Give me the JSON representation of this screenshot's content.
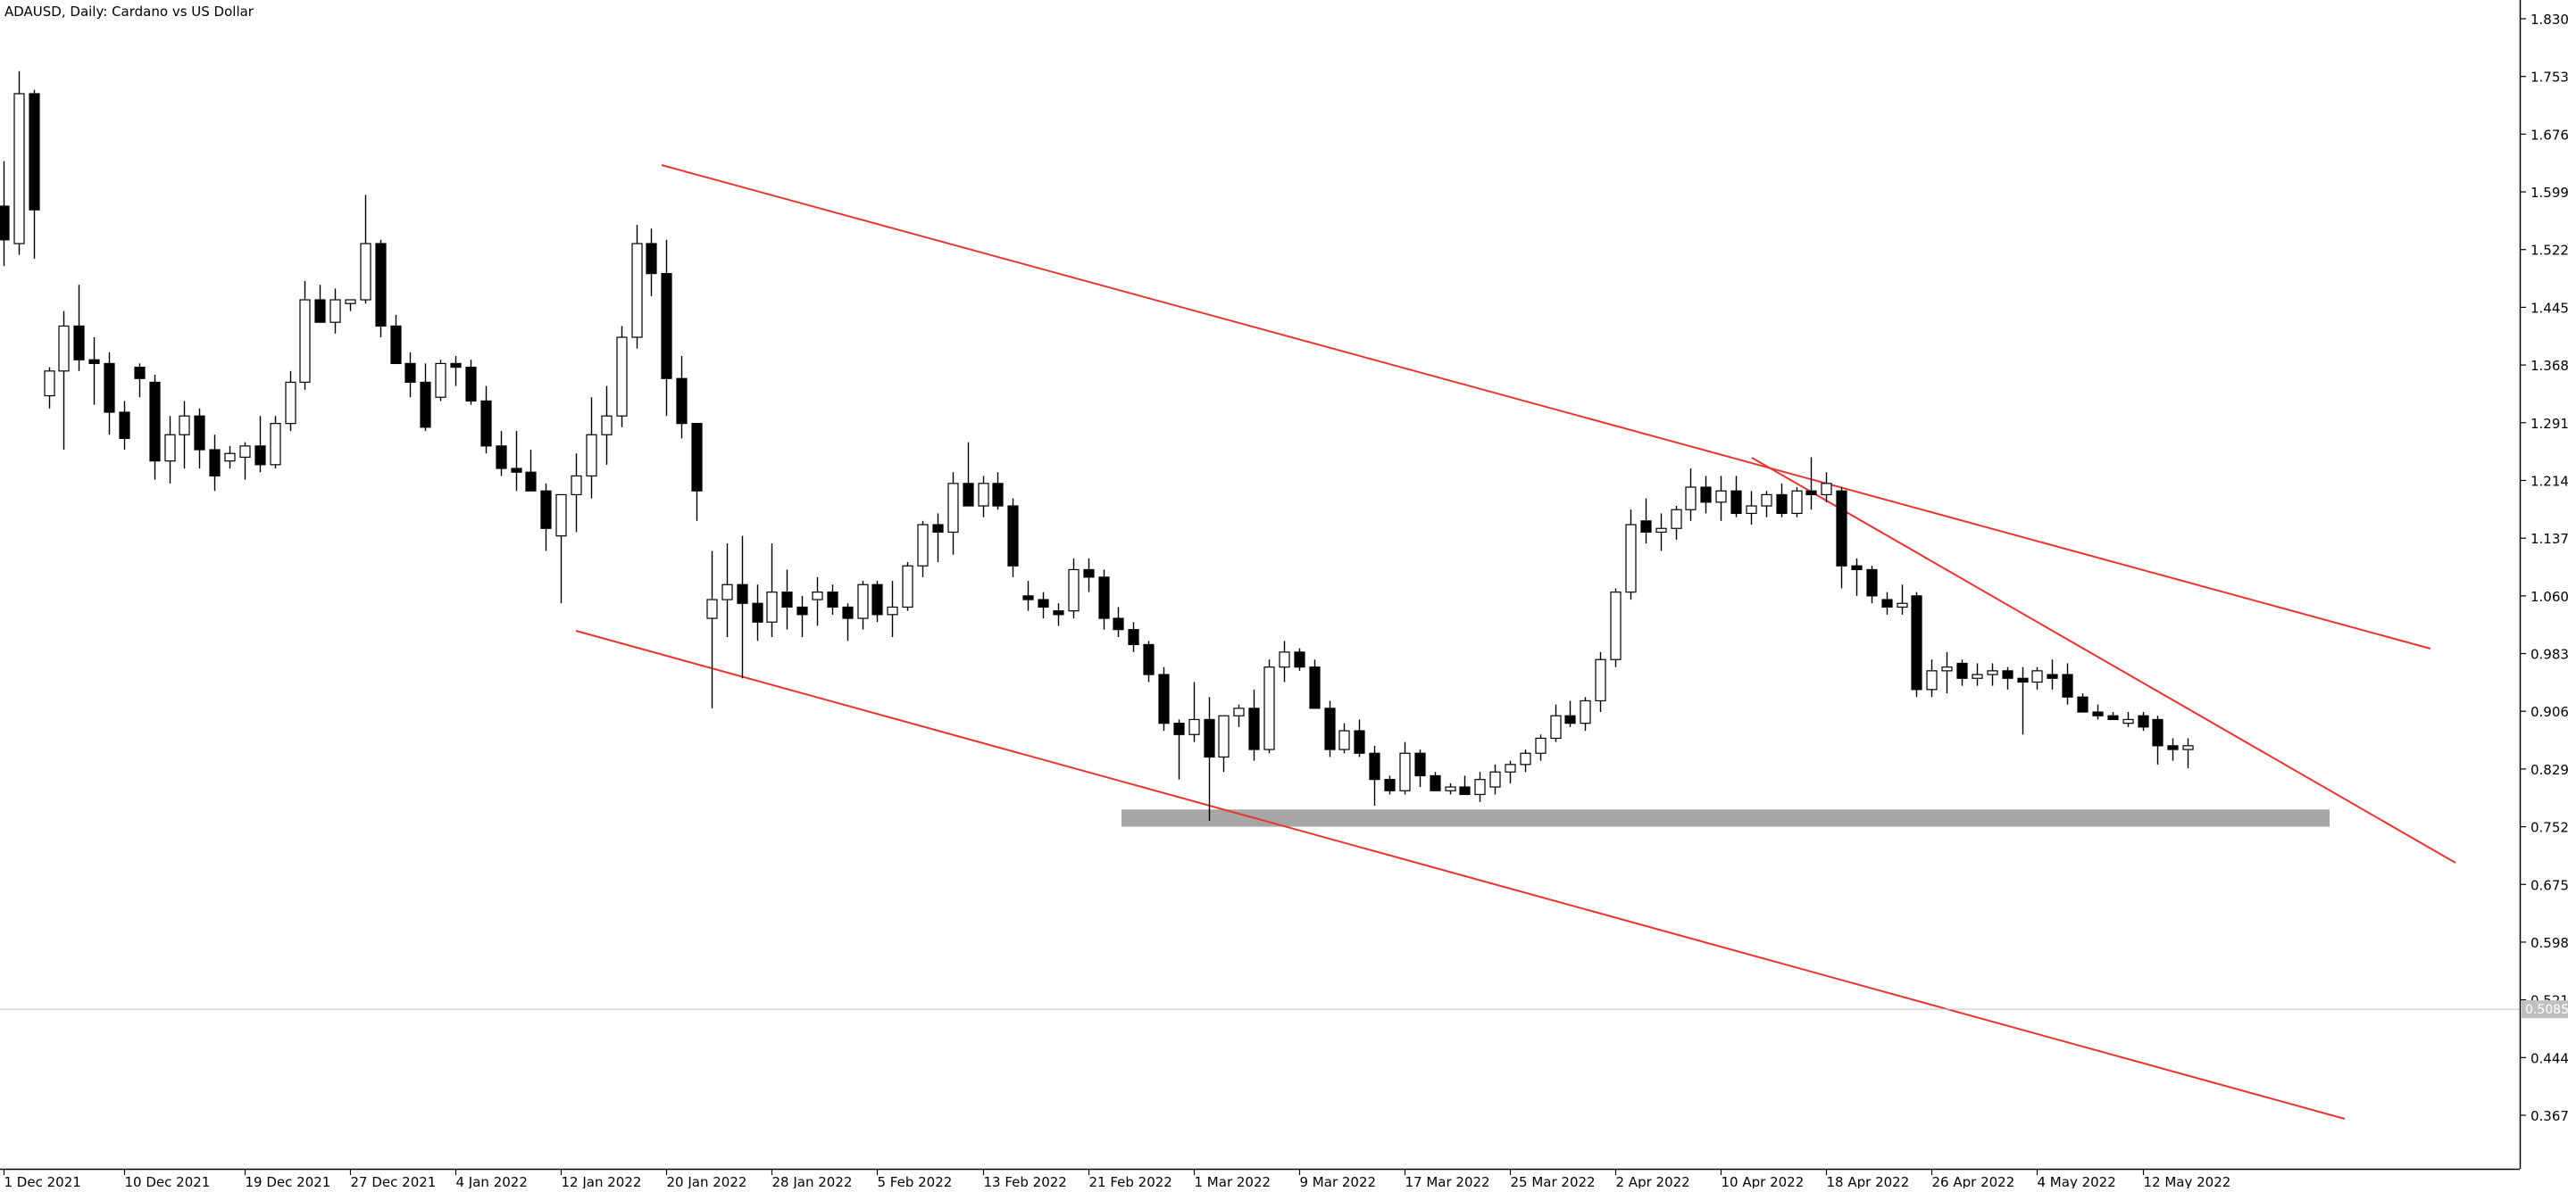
{
  "window": {
    "title": "ADAUSD, Daily:  Cardano vs US Dollar"
  },
  "colors": {
    "background": "#ffffff",
    "axis": "#000000",
    "bull_fill": "#ffffff",
    "bear_fill": "#000000",
    "trendline": "#e8352f",
    "support_zone": "#a6a6a6",
    "price_line": "#c0c0c0"
  },
  "chart_data": {
    "type": "candlestick",
    "symbol": "ADAUSD",
    "timeframe": "Daily",
    "title": "ADAUSD, Daily:  Cardano vs US Dollar",
    "y_axis": {
      "position": "right",
      "ticks": [
        1.83,
        1.753,
        1.676,
        1.599,
        1.522,
        1.445,
        1.368,
        1.291,
        1.214,
        1.137,
        1.06,
        0.983,
        0.906,
        0.829,
        0.752,
        0.675,
        0.598,
        0.521,
        0.444,
        0.367
      ],
      "tick_labels": [
        "1.8300",
        "1.7530",
        "1.6760",
        "1.5990",
        "1.5220",
        "1.4450",
        "1.3680",
        "1.2910",
        "1.2140",
        "1.1370",
        "1.0600",
        "0.9830",
        "0.9060",
        "0.8290",
        "0.7520",
        "0.6750",
        "0.5980",
        "0.5210",
        "0.4440",
        "0.3670"
      ],
      "ylim": [
        0.335,
        1.845
      ]
    },
    "x_axis": {
      "labels": [
        "1 Dec 2021",
        "10 Dec 2021",
        "19 Dec 2021",
        "27 Dec 2021",
        "4 Jan 2022",
        "12 Jan 2022",
        "20 Jan 2022",
        "28 Jan 2022",
        "5 Feb 2022",
        "13 Feb 2022",
        "21 Feb 2022",
        "1 Mar 2022",
        "9 Mar 2022",
        "17 Mar 2022",
        "25 Mar 2022",
        "2 Apr 2022",
        "10 Apr 2022",
        "18 Apr 2022",
        "26 Apr 2022",
        "4 May 2022",
        "12 May 2022"
      ],
      "label_bar_index": [
        0,
        8,
        16,
        23,
        30,
        37,
        44,
        51,
        58,
        65,
        72,
        79,
        86,
        93,
        100,
        107,
        114,
        121,
        128,
        135,
        142
      ]
    },
    "current_price": 0.5085,
    "current_price_label": "0.5085",
    "candles": [
      {
        "o": 1.58,
        "h": 1.64,
        "l": 1.5,
        "c": 1.535
      },
      {
        "o": 1.53,
        "h": 1.76,
        "l": 1.515,
        "c": 1.73
      },
      {
        "o": 1.73,
        "h": 1.735,
        "l": 1.51,
        "c": 1.575
      },
      {
        "o": 1.327,
        "h": 1.365,
        "l": 1.31,
        "c": 1.36
      },
      {
        "o": 1.36,
        "h": 1.44,
        "l": 1.255,
        "c": 1.42
      },
      {
        "o": 1.42,
        "h": 1.475,
        "l": 1.36,
        "c": 1.375
      },
      {
        "o": 1.375,
        "h": 1.405,
        "l": 1.315,
        "c": 1.37
      },
      {
        "o": 1.37,
        "h": 1.385,
        "l": 1.275,
        "c": 1.305
      },
      {
        "o": 1.305,
        "h": 1.32,
        "l": 1.255,
        "c": 1.27
      },
      {
        "o": 1.365,
        "h": 1.37,
        "l": 1.325,
        "c": 1.35
      },
      {
        "o": 1.345,
        "h": 1.355,
        "l": 1.215,
        "c": 1.24
      },
      {
        "o": 1.24,
        "h": 1.3,
        "l": 1.21,
        "c": 1.275
      },
      {
        "o": 1.275,
        "h": 1.32,
        "l": 1.23,
        "c": 1.3
      },
      {
        "o": 1.3,
        "h": 1.31,
        "l": 1.23,
        "c": 1.255
      },
      {
        "o": 1.255,
        "h": 1.275,
        "l": 1.2,
        "c": 1.22
      },
      {
        "o": 1.24,
        "h": 1.26,
        "l": 1.23,
        "c": 1.25
      },
      {
        "o": 1.245,
        "h": 1.265,
        "l": 1.215,
        "c": 1.26
      },
      {
        "o": 1.26,
        "h": 1.3,
        "l": 1.225,
        "c": 1.235
      },
      {
        "o": 1.235,
        "h": 1.3,
        "l": 1.23,
        "c": 1.29
      },
      {
        "o": 1.29,
        "h": 1.36,
        "l": 1.28,
        "c": 1.345
      },
      {
        "o": 1.345,
        "h": 1.48,
        "l": 1.335,
        "c": 1.455
      },
      {
        "o": 1.455,
        "h": 1.475,
        "l": 1.43,
        "c": 1.425
      },
      {
        "o": 1.425,
        "h": 1.47,
        "l": 1.41,
        "c": 1.455
      },
      {
        "o": 1.45,
        "h": 1.455,
        "l": 1.44,
        "c": 1.455
      },
      {
        "o": 1.455,
        "h": 1.595,
        "l": 1.45,
        "c": 1.53
      },
      {
        "o": 1.53,
        "h": 1.535,
        "l": 1.405,
        "c": 1.42
      },
      {
        "o": 1.42,
        "h": 1.435,
        "l": 1.37,
        "c": 1.37
      },
      {
        "o": 1.37,
        "h": 1.385,
        "l": 1.325,
        "c": 1.345
      },
      {
        "o": 1.345,
        "h": 1.37,
        "l": 1.28,
        "c": 1.285
      },
      {
        "o": 1.325,
        "h": 1.375,
        "l": 1.32,
        "c": 1.37
      },
      {
        "o": 1.37,
        "h": 1.38,
        "l": 1.34,
        "c": 1.365
      },
      {
        "o": 1.365,
        "h": 1.375,
        "l": 1.315,
        "c": 1.32
      },
      {
        "o": 1.32,
        "h": 1.34,
        "l": 1.25,
        "c": 1.26
      },
      {
        "o": 1.26,
        "h": 1.28,
        "l": 1.22,
        "c": 1.23
      },
      {
        "o": 1.23,
        "h": 1.28,
        "l": 1.2,
        "c": 1.225
      },
      {
        "o": 1.225,
        "h": 1.255,
        "l": 1.2,
        "c": 1.2
      },
      {
        "o": 1.2,
        "h": 1.21,
        "l": 1.12,
        "c": 1.15
      },
      {
        "o": 1.14,
        "h": 1.185,
        "l": 1.05,
        "c": 1.195
      },
      {
        "o": 1.195,
        "h": 1.25,
        "l": 1.145,
        "c": 1.22
      },
      {
        "o": 1.22,
        "h": 1.325,
        "l": 1.19,
        "c": 1.275
      },
      {
        "o": 1.275,
        "h": 1.34,
        "l": 1.235,
        "c": 1.3
      },
      {
        "o": 1.3,
        "h": 1.42,
        "l": 1.285,
        "c": 1.405
      },
      {
        "o": 1.405,
        "h": 1.555,
        "l": 1.39,
        "c": 1.53
      },
      {
        "o": 1.53,
        "h": 1.55,
        "l": 1.46,
        "c": 1.49
      },
      {
        "o": 1.49,
        "h": 1.535,
        "l": 1.3,
        "c": 1.35
      },
      {
        "o": 1.35,
        "h": 1.38,
        "l": 1.27,
        "c": 1.29
      },
      {
        "o": 1.29,
        "h": 1.29,
        "l": 1.16,
        "c": 1.2
      },
      {
        "o": 1.03,
        "h": 1.12,
        "l": 0.91,
        "c": 1.055
      },
      {
        "o": 1.055,
        "h": 1.13,
        "l": 1.005,
        "c": 1.075
      },
      {
        "o": 1.075,
        "h": 1.14,
        "l": 0.95,
        "c": 1.05
      },
      {
        "o": 1.05,
        "h": 1.075,
        "l": 1.0,
        "c": 1.025
      },
      {
        "o": 1.025,
        "h": 1.13,
        "l": 1.005,
        "c": 1.065
      },
      {
        "o": 1.065,
        "h": 1.095,
        "l": 1.015,
        "c": 1.045
      },
      {
        "o": 1.045,
        "h": 1.06,
        "l": 1.005,
        "c": 1.035
      },
      {
        "o": 1.055,
        "h": 1.085,
        "l": 1.02,
        "c": 1.065
      },
      {
        "o": 1.065,
        "h": 1.075,
        "l": 1.035,
        "c": 1.045
      },
      {
        "o": 1.045,
        "h": 1.05,
        "l": 1.0,
        "c": 1.03
      },
      {
        "o": 1.03,
        "h": 1.08,
        "l": 1.015,
        "c": 1.075
      },
      {
        "o": 1.075,
        "h": 1.08,
        "l": 1.025,
        "c": 1.035
      },
      {
        "o": 1.035,
        "h": 1.08,
        "l": 1.005,
        "c": 1.045
      },
      {
        "o": 1.045,
        "h": 1.105,
        "l": 1.04,
        "c": 1.1
      },
      {
        "o": 1.1,
        "h": 1.16,
        "l": 1.085,
        "c": 1.155
      },
      {
        "o": 1.155,
        "h": 1.17,
        "l": 1.105,
        "c": 1.145
      },
      {
        "o": 1.145,
        "h": 1.225,
        "l": 1.115,
        "c": 1.21
      },
      {
        "o": 1.21,
        "h": 1.265,
        "l": 1.19,
        "c": 1.18
      },
      {
        "o": 1.18,
        "h": 1.22,
        "l": 1.165,
        "c": 1.21
      },
      {
        "o": 1.21,
        "h": 1.225,
        "l": 1.175,
        "c": 1.18
      },
      {
        "o": 1.18,
        "h": 1.19,
        "l": 1.085,
        "c": 1.1
      },
      {
        "o": 1.06,
        "h": 1.08,
        "l": 1.04,
        "c": 1.055
      },
      {
        "o": 1.055,
        "h": 1.065,
        "l": 1.03,
        "c": 1.045
      },
      {
        "o": 1.04,
        "h": 1.05,
        "l": 1.02,
        "c": 1.035
      },
      {
        "o": 1.04,
        "h": 1.11,
        "l": 1.03,
        "c": 1.095
      },
      {
        "o": 1.095,
        "h": 1.11,
        "l": 1.065,
        "c": 1.085
      },
      {
        "o": 1.085,
        "h": 1.095,
        "l": 1.015,
        "c": 1.03
      },
      {
        "o": 1.03,
        "h": 1.045,
        "l": 1.005,
        "c": 1.015
      },
      {
        "o": 1.015,
        "h": 1.025,
        "l": 0.985,
        "c": 0.995
      },
      {
        "o": 0.995,
        "h": 1.0,
        "l": 0.945,
        "c": 0.955
      },
      {
        "o": 0.955,
        "h": 0.965,
        "l": 0.88,
        "c": 0.89
      },
      {
        "o": 0.89,
        "h": 0.895,
        "l": 0.815,
        "c": 0.875
      },
      {
        "o": 0.875,
        "h": 0.945,
        "l": 0.865,
        "c": 0.895
      },
      {
        "o": 0.895,
        "h": 0.925,
        "l": 0.76,
        "c": 0.845
      },
      {
        "o": 0.845,
        "h": 0.9,
        "l": 0.825,
        "c": 0.9
      },
      {
        "o": 0.9,
        "h": 0.915,
        "l": 0.885,
        "c": 0.91
      },
      {
        "o": 0.91,
        "h": 0.935,
        "l": 0.84,
        "c": 0.855
      },
      {
        "o": 0.855,
        "h": 0.975,
        "l": 0.85,
        "c": 0.965
      },
      {
        "o": 0.965,
        "h": 1.0,
        "l": 0.945,
        "c": 0.985
      },
      {
        "o": 0.985,
        "h": 0.99,
        "l": 0.96,
        "c": 0.965
      },
      {
        "o": 0.965,
        "h": 0.975,
        "l": 0.91,
        "c": 0.91
      },
      {
        "o": 0.91,
        "h": 0.92,
        "l": 0.845,
        "c": 0.855
      },
      {
        "o": 0.855,
        "h": 0.89,
        "l": 0.85,
        "c": 0.88
      },
      {
        "o": 0.88,
        "h": 0.895,
        "l": 0.845,
        "c": 0.85
      },
      {
        "o": 0.85,
        "h": 0.86,
        "l": 0.78,
        "c": 0.815
      },
      {
        "o": 0.815,
        "h": 0.82,
        "l": 0.795,
        "c": 0.8
      },
      {
        "o": 0.8,
        "h": 0.865,
        "l": 0.795,
        "c": 0.85
      },
      {
        "o": 0.85,
        "h": 0.855,
        "l": 0.805,
        "c": 0.82
      },
      {
        "o": 0.82,
        "h": 0.825,
        "l": 0.8,
        "c": 0.8
      },
      {
        "o": 0.8,
        "h": 0.81,
        "l": 0.795,
        "c": 0.805
      },
      {
        "o": 0.805,
        "h": 0.82,
        "l": 0.795,
        "c": 0.795
      },
      {
        "o": 0.795,
        "h": 0.825,
        "l": 0.785,
        "c": 0.815
      },
      {
        "o": 0.805,
        "h": 0.835,
        "l": 0.795,
        "c": 0.825
      },
      {
        "o": 0.825,
        "h": 0.84,
        "l": 0.81,
        "c": 0.835
      },
      {
        "o": 0.835,
        "h": 0.855,
        "l": 0.825,
        "c": 0.85
      },
      {
        "o": 0.85,
        "h": 0.875,
        "l": 0.84,
        "c": 0.87
      },
      {
        "o": 0.87,
        "h": 0.915,
        "l": 0.865,
        "c": 0.9
      },
      {
        "o": 0.9,
        "h": 0.92,
        "l": 0.885,
        "c": 0.89
      },
      {
        "o": 0.89,
        "h": 0.925,
        "l": 0.88,
        "c": 0.92
      },
      {
        "o": 0.92,
        "h": 0.985,
        "l": 0.905,
        "c": 0.975
      },
      {
        "o": 0.975,
        "h": 1.07,
        "l": 0.965,
        "c": 1.065
      },
      {
        "o": 1.065,
        "h": 1.175,
        "l": 1.055,
        "c": 1.155
      },
      {
        "o": 1.16,
        "h": 1.19,
        "l": 1.13,
        "c": 1.145
      },
      {
        "o": 1.145,
        "h": 1.17,
        "l": 1.12,
        "c": 1.15
      },
      {
        "o": 1.15,
        "h": 1.18,
        "l": 1.135,
        "c": 1.175
      },
      {
        "o": 1.175,
        "h": 1.23,
        "l": 1.16,
        "c": 1.205
      },
      {
        "o": 1.205,
        "h": 1.22,
        "l": 1.17,
        "c": 1.185
      },
      {
        "o": 1.185,
        "h": 1.22,
        "l": 1.16,
        "c": 1.2
      },
      {
        "o": 1.2,
        "h": 1.22,
        "l": 1.165,
        "c": 1.17
      },
      {
        "o": 1.17,
        "h": 1.2,
        "l": 1.155,
        "c": 1.18
      },
      {
        "o": 1.18,
        "h": 1.2,
        "l": 1.165,
        "c": 1.195
      },
      {
        "o": 1.195,
        "h": 1.21,
        "l": 1.165,
        "c": 1.17
      },
      {
        "o": 1.17,
        "h": 1.205,
        "l": 1.165,
        "c": 1.2
      },
      {
        "o": 1.2,
        "h": 1.245,
        "l": 1.175,
        "c": 1.195
      },
      {
        "o": 1.195,
        "h": 1.225,
        "l": 1.185,
        "c": 1.21
      },
      {
        "o": 1.2,
        "h": 1.205,
        "l": 1.07,
        "c": 1.1
      },
      {
        "o": 1.1,
        "h": 1.11,
        "l": 1.06,
        "c": 1.095
      },
      {
        "o": 1.095,
        "h": 1.1,
        "l": 1.05,
        "c": 1.06
      },
      {
        "o": 1.055,
        "h": 1.065,
        "l": 1.035,
        "c": 1.045
      },
      {
        "o": 1.045,
        "h": 1.075,
        "l": 1.035,
        "c": 1.05
      },
      {
        "o": 1.06,
        "h": 1.065,
        "l": 0.925,
        "c": 0.935
      },
      {
        "o": 0.935,
        "h": 0.975,
        "l": 0.925,
        "c": 0.96
      },
      {
        "o": 0.96,
        "h": 0.985,
        "l": 0.93,
        "c": 0.965
      },
      {
        "o": 0.97,
        "h": 0.975,
        "l": 0.94,
        "c": 0.95
      },
      {
        "o": 0.95,
        "h": 0.97,
        "l": 0.94,
        "c": 0.955
      },
      {
        "o": 0.955,
        "h": 0.97,
        "l": 0.94,
        "c": 0.96
      },
      {
        "o": 0.96,
        "h": 0.965,
        "l": 0.935,
        "c": 0.95
      },
      {
        "o": 0.95,
        "h": 0.965,
        "l": 0.875,
        "c": 0.945
      },
      {
        "o": 0.945,
        "h": 0.965,
        "l": 0.935,
        "c": 0.96
      },
      {
        "o": 0.955,
        "h": 0.975,
        "l": 0.935,
        "c": 0.95
      },
      {
        "o": 0.955,
        "h": 0.97,
        "l": 0.915,
        "c": 0.925
      },
      {
        "o": 0.925,
        "h": 0.93,
        "l": 0.905,
        "c": 0.905
      },
      {
        "o": 0.905,
        "h": 0.915,
        "l": 0.895,
        "c": 0.9
      },
      {
        "o": 0.9,
        "h": 0.905,
        "l": 0.895,
        "c": 0.895
      },
      {
        "o": 0.89,
        "h": 0.905,
        "l": 0.885,
        "c": 0.895
      },
      {
        "o": 0.9,
        "h": 0.905,
        "l": 0.88,
        "c": 0.885
      },
      {
        "o": 0.895,
        "h": 0.9,
        "l": 0.835,
        "c": 0.86
      },
      {
        "o": 0.86,
        "h": 0.87,
        "l": 0.84,
        "c": 0.855
      },
      {
        "o": 0.855,
        "h": 0.87,
        "l": 0.83,
        "c": 0.86
      }
    ],
    "drawings": [
      {
        "name": "channel-upper-line",
        "kind": "trendline"
      },
      {
        "name": "channel-lower-line",
        "kind": "trendline"
      },
      {
        "name": "steep-trendline",
        "kind": "trendline"
      },
      {
        "name": "support-zone",
        "kind": "rectangle",
        "price_from": 0.752,
        "price_to": 0.775
      }
    ]
  }
}
